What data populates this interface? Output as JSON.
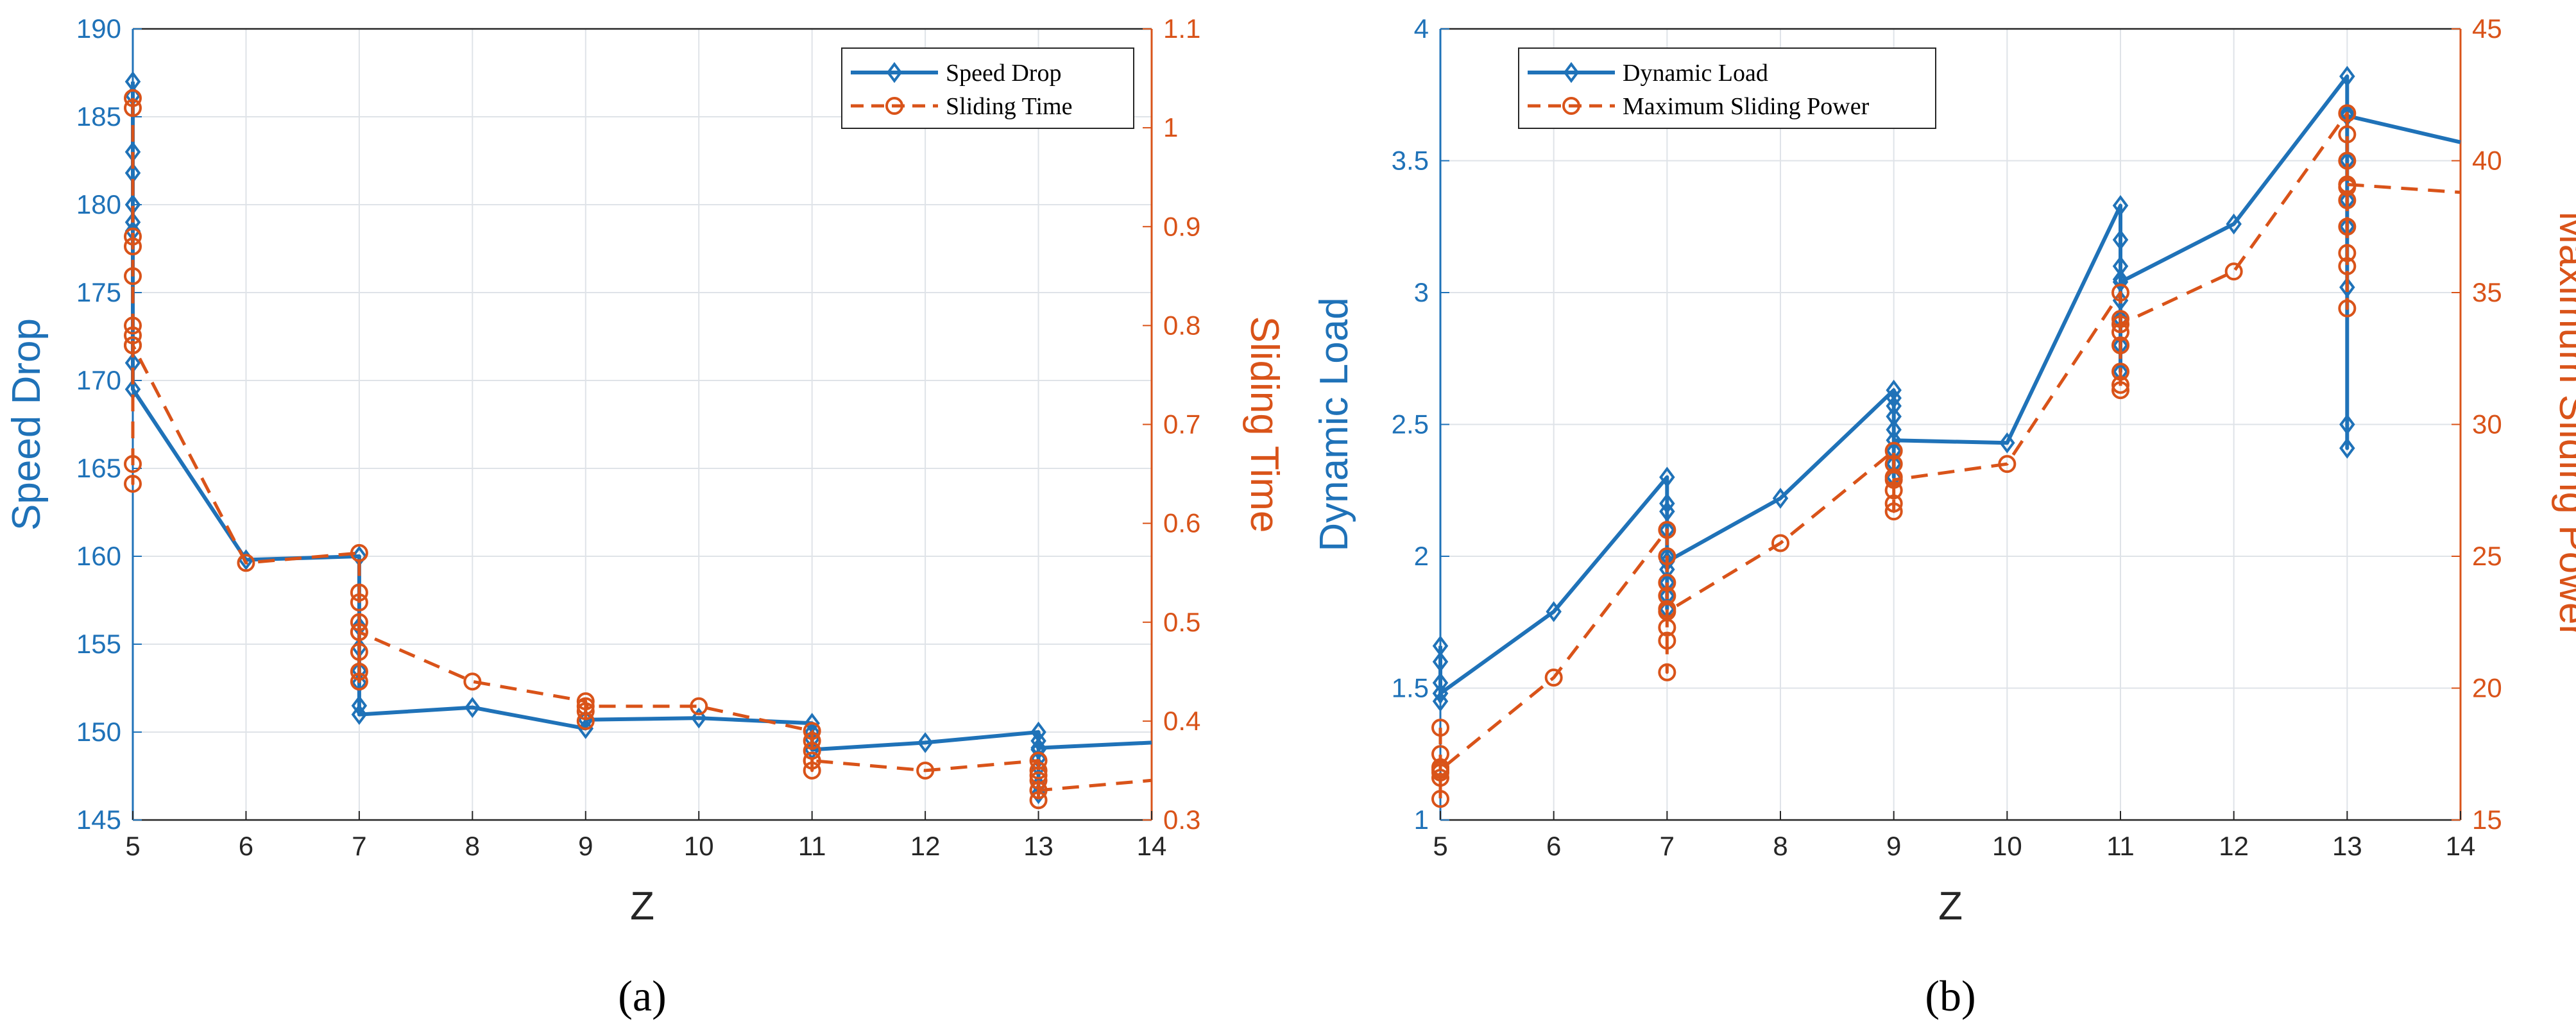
{
  "chart_data": [
    {
      "type": "line",
      "panel_label": "(a)",
      "xlabel": "Z",
      "x_ticks": [
        5,
        6,
        7,
        8,
        9,
        10,
        11,
        12,
        13,
        14
      ],
      "xlim": [
        5,
        14
      ],
      "left_axis": {
        "label": "Speed Drop",
        "lim": [
          145,
          190
        ],
        "ticks": [
          145,
          150,
          155,
          160,
          165,
          170,
          175,
          180,
          185,
          190
        ],
        "color": "#1f72b8"
      },
      "right_axis": {
        "label": "Sliding Time",
        "lim": [
          0.3,
          1.1
        ],
        "ticks": [
          0.3,
          0.4,
          0.5,
          0.6,
          0.7,
          0.8,
          0.9,
          1,
          1.1
        ],
        "color": "#d95319"
      },
      "legend": {
        "location": "top-right",
        "entries": [
          "Speed Drop",
          "Sliding Time"
        ]
      },
      "series": [
        {
          "name": "Speed Drop",
          "axis": "left",
          "style": "solid",
          "marker": "diamond",
          "color": "#1f72b8",
          "points": [
            [
              5,
              187
            ],
            [
              5,
              186.2
            ],
            [
              5,
              183
            ],
            [
              5,
              181.8
            ],
            [
              5,
              180
            ],
            [
              5,
              179
            ],
            [
              5,
              178.5
            ],
            [
              5,
              171
            ],
            [
              5,
              169.5
            ],
            [
              6,
              159.8
            ],
            [
              7,
              160
            ],
            [
              7,
              156
            ],
            [
              7,
              154.8
            ],
            [
              7,
              153.5
            ],
            [
              7,
              152.8
            ],
            [
              7,
              151.5
            ],
            [
              7,
              151
            ],
            [
              8,
              151.4
            ],
            [
              9,
              150.2
            ],
            [
              9,
              150.7
            ],
            [
              10,
              150.8
            ],
            [
              11,
              150.5
            ],
            [
              11,
              150
            ],
            [
              11,
              149.6
            ],
            [
              11,
              149
            ],
            [
              12,
              149.4
            ],
            [
              13,
              150
            ],
            [
              13,
              149.5
            ],
            [
              13,
              149
            ],
            [
              13,
              148.5
            ],
            [
              13,
              148
            ],
            [
              13,
              147
            ],
            [
              13,
              146.5
            ],
            [
              13,
              149.1
            ],
            [
              14,
              149.4
            ]
          ]
        },
        {
          "name": "Sliding Time",
          "axis": "right",
          "style": "dashed",
          "marker": "circle",
          "color": "#d95319",
          "points": [
            [
              5,
              1.03
            ],
            [
              5,
              1.02
            ],
            [
              5,
              0.89
            ],
            [
              5,
              0.88
            ],
            [
              5,
              0.85
            ],
            [
              5,
              0.8
            ],
            [
              5,
              0.79
            ],
            [
              5,
              0.78
            ],
            [
              5,
              0.66
            ],
            [
              5,
              0.64
            ],
            [
              5,
              0.78
            ],
            [
              6,
              0.56
            ],
            [
              7,
              0.57
            ],
            [
              7,
              0.53
            ],
            [
              7,
              0.52
            ],
            [
              7,
              0.5
            ],
            [
              7,
              0.49
            ],
            [
              7,
              0.47
            ],
            [
              7,
              0.45
            ],
            [
              7,
              0.44
            ],
            [
              7,
              0.49
            ],
            [
              8,
              0.44
            ],
            [
              9,
              0.42
            ],
            [
              9,
              0.41
            ],
            [
              9,
              0.4
            ],
            [
              9,
              0.415
            ],
            [
              10,
              0.415
            ],
            [
              11,
              0.39
            ],
            [
              11,
              0.38
            ],
            [
              11,
              0.37
            ],
            [
              11,
              0.36
            ],
            [
              11,
              0.35
            ],
            [
              11,
              0.36
            ],
            [
              12,
              0.35
            ],
            [
              13,
              0.36
            ],
            [
              13,
              0.35
            ],
            [
              13,
              0.345
            ],
            [
              13,
              0.34
            ],
            [
              13,
              0.33
            ],
            [
              13,
              0.32
            ],
            [
              13,
              0.33
            ],
            [
              14,
              0.34
            ]
          ]
        }
      ]
    },
    {
      "type": "line",
      "panel_label": "(b)",
      "xlabel": "Z",
      "x_ticks": [
        5,
        6,
        7,
        8,
        9,
        10,
        11,
        12,
        13,
        14
      ],
      "xlim": [
        5,
        14
      ],
      "left_axis": {
        "label": "Dynamic Load",
        "lim": [
          1,
          4
        ],
        "ticks": [
          1,
          1.5,
          2,
          2.5,
          3,
          3.5,
          4
        ],
        "color": "#1f72b8"
      },
      "right_axis": {
        "label": "Maximum Sliding Power",
        "lim": [
          15,
          45
        ],
        "ticks": [
          15,
          20,
          25,
          30,
          35,
          40,
          45
        ],
        "color": "#d95319"
      },
      "legend": {
        "location": "top-left",
        "entries": [
          "Dynamic Load",
          "Maximum Sliding Power"
        ]
      },
      "series": [
        {
          "name": "Dynamic Load",
          "axis": "left",
          "style": "solid",
          "marker": "diamond",
          "color": "#1f72b8",
          "points": [
            [
              5,
              1.66
            ],
            [
              5,
              1.6
            ],
            [
              5,
              1.52
            ],
            [
              5,
              1.48
            ],
            [
              5,
              1.45
            ],
            [
              5,
              1.48
            ],
            [
              6,
              1.79
            ],
            [
              7,
              2.3
            ],
            [
              7,
              2.2
            ],
            [
              7,
              2.17
            ],
            [
              7,
              2.1
            ],
            [
              7,
              2.0
            ],
            [
              7,
              1.95
            ],
            [
              7,
              1.9
            ],
            [
              7,
              1.85
            ],
            [
              7,
              1.8
            ],
            [
              7,
              1.98
            ],
            [
              8,
              2.22
            ],
            [
              9,
              2.63
            ],
            [
              9,
              2.6
            ],
            [
              9,
              2.57
            ],
            [
              9,
              2.53
            ],
            [
              9,
              2.48
            ],
            [
              9,
              2.4
            ],
            [
              9,
              2.35
            ],
            [
              9,
              2.3
            ],
            [
              9,
              2.44
            ],
            [
              10,
              2.43
            ],
            [
              11,
              3.33
            ],
            [
              11,
              3.2
            ],
            [
              11,
              3.1
            ],
            [
              11,
              3.05
            ],
            [
              11,
              2.97
            ],
            [
              11,
              2.9
            ],
            [
              11,
              2.8
            ],
            [
              11,
              2.7
            ],
            [
              11,
              3.04
            ],
            [
              12,
              3.26
            ],
            [
              13,
              3.82
            ],
            [
              13,
              3.68
            ],
            [
              13,
              3.5
            ],
            [
              13,
              3.35
            ],
            [
              13,
              3.25
            ],
            [
              13,
              3.02
            ],
            [
              13,
              2.5
            ],
            [
              13,
              2.41
            ],
            [
              13,
              3.67
            ],
            [
              14,
              3.57
            ]
          ]
        },
        {
          "name": "Maximum Sliding Power",
          "axis": "right",
          "style": "dashed",
          "marker": "circle",
          "color": "#d95319",
          "points": [
            [
              5,
              18.5
            ],
            [
              5,
              17.5
            ],
            [
              5,
              17
            ],
            [
              5,
              16.8
            ],
            [
              5,
              16.6
            ],
            [
              5,
              15.8
            ],
            [
              5,
              16.9
            ],
            [
              6,
              20.4
            ],
            [
              7,
              26
            ],
            [
              7,
              25
            ],
            [
              7,
              24
            ],
            [
              7,
              23.5
            ],
            [
              7,
              23
            ],
            [
              7,
              22.3
            ],
            [
              7,
              21.8
            ],
            [
              7,
              20.6
            ],
            [
              7,
              22.9
            ],
            [
              8,
              25.5
            ],
            [
              9,
              29
            ],
            [
              9,
              28.5
            ],
            [
              9,
              28
            ],
            [
              9,
              27.5
            ],
            [
              9,
              27
            ],
            [
              9,
              26.7
            ],
            [
              9,
              27.9
            ],
            [
              10,
              28.5
            ],
            [
              11,
              35
            ],
            [
              11,
              34
            ],
            [
              11,
              33.5
            ],
            [
              11,
              33
            ],
            [
              11,
              32
            ],
            [
              11,
              31.5
            ],
            [
              11,
              31.3
            ],
            [
              11,
              33.8
            ],
            [
              12,
              35.8
            ],
            [
              13,
              41.8
            ],
            [
              13,
              41
            ],
            [
              13,
              40
            ],
            [
              13,
              39
            ],
            [
              13,
              38.5
            ],
            [
              13,
              37.5
            ],
            [
              13,
              36.5
            ],
            [
              13,
              36
            ],
            [
              13,
              34.4
            ],
            [
              13,
              39.1
            ],
            [
              14,
              38.8
            ]
          ]
        }
      ]
    }
  ]
}
